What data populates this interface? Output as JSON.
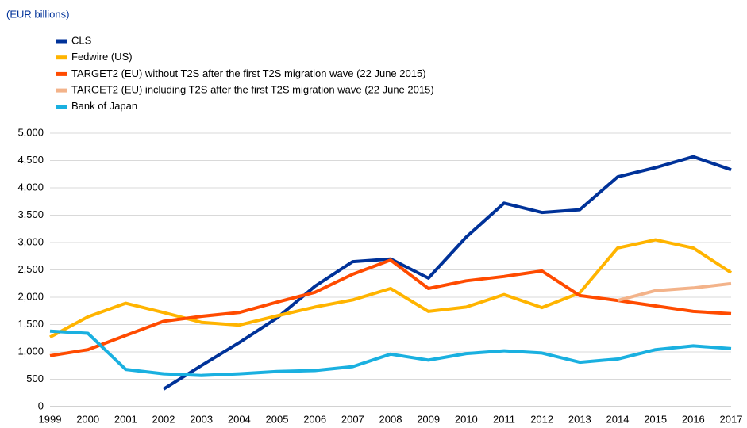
{
  "chart_data": {
    "type": "line",
    "title": "(EUR billions)",
    "categories": [
      "1999",
      "2000",
      "2001",
      "2002",
      "2003",
      "2004",
      "2005",
      "2006",
      "2007",
      "2008",
      "2009",
      "2010",
      "2011",
      "2012",
      "2013",
      "2014",
      "2015",
      "2016",
      "2017"
    ],
    "ylim": [
      0,
      5000
    ],
    "yticks": [
      0,
      500,
      {
        "value": 1000,
        "label": "1,000"
      },
      {
        "value": 1500,
        "label": "1,500"
      },
      {
        "value": 2000,
        "label": "2,000"
      },
      {
        "value": 2500,
        "label": "2,500"
      },
      {
        "value": 3000,
        "label": "3,000"
      },
      {
        "value": 3500,
        "label": "3,500"
      },
      {
        "value": 4000,
        "label": "4,000"
      },
      {
        "value": 4500,
        "label": "4,500"
      },
      {
        "value": 5000,
        "label": "5,000"
      }
    ],
    "grid": true,
    "legend": "top-left",
    "series": [
      {
        "name": "CLS",
        "color": "#003299",
        "values": [
          null,
          null,
          null,
          320,
          750,
          1170,
          1620,
          2200,
          2650,
          2700,
          2350,
          3100,
          3720,
          3550,
          3600,
          4200,
          4370,
          4570,
          4330
        ]
      },
      {
        "name": "Fedwire (US)",
        "color": "#ffb400",
        "values": [
          1270,
          1640,
          1890,
          1720,
          1540,
          1490,
          1660,
          1820,
          1950,
          2160,
          1740,
          1820,
          2050,
          1810,
          2080,
          2900,
          3050,
          2900,
          2450
        ]
      },
      {
        "name": "TARGET2 (EU) without T2S after the first T2S migration wave (22 June 2015)",
        "color": "#ff4b00",
        "values": [
          930,
          1040,
          1300,
          1560,
          1650,
          1720,
          1910,
          2090,
          2420,
          2680,
          2160,
          2300,
          2380,
          2480,
          2030,
          1940,
          1840,
          1740,
          1700
        ]
      },
      {
        "name": "TARGET2 (EU) including T2S after the first T2S migration wave (22 June 2015)",
        "color": "#f3b38a",
        "values": [
          null,
          null,
          null,
          null,
          null,
          null,
          null,
          null,
          null,
          null,
          null,
          null,
          null,
          null,
          null,
          1940,
          2120,
          2170,
          2250
        ]
      },
      {
        "name": "Bank of Japan",
        "color": "#1ab0e0",
        "values": [
          1380,
          1340,
          680,
          600,
          570,
          600,
          640,
          660,
          730,
          960,
          850,
          970,
          1020,
          980,
          810,
          870,
          1040,
          1110,
          1060
        ]
      }
    ]
  }
}
